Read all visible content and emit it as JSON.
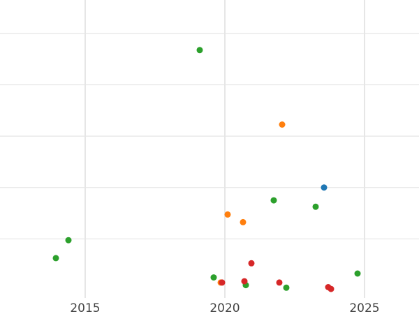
{
  "chart_data": {
    "type": "scatter",
    "title": "",
    "xlabel": "",
    "ylabel": "",
    "grid": true,
    "legend": "none",
    "xlim": [
      2011.95,
      2026.95
    ],
    "ylim": [
      -0.3,
      11.3
    ],
    "x_ticks": [
      2015,
      2020,
      2025
    ],
    "x_tick_labels": [
      "2015",
      "2020",
      "2025"
    ],
    "y_ticks": [
      2,
      4,
      6,
      8,
      10
    ],
    "y_tick_labels": [],
    "colors": {
      "blue": "#1f77b4",
      "orange": "#ff7f0e",
      "green": "#2ca02c",
      "red": "#d62728"
    },
    "series": [
      {
        "color": "#1f77b4",
        "points": [
          [
            2023.55,
            4.0
          ]
        ]
      },
      {
        "color": "#ff7f0e",
        "points": [
          [
            2022.05,
            6.45
          ],
          [
            2020.1,
            2.95
          ],
          [
            2020.65,
            2.65
          ],
          [
            2019.85,
            0.3
          ]
        ]
      },
      {
        "color": "#2ca02c",
        "points": [
          [
            2019.1,
            9.35
          ],
          [
            2021.75,
            3.5
          ],
          [
            2023.25,
            3.25
          ],
          [
            2014.4,
            1.95
          ],
          [
            2013.95,
            1.25
          ],
          [
            2019.6,
            0.5
          ],
          [
            2020.75,
            0.2
          ],
          [
            2022.2,
            0.1
          ],
          [
            2024.75,
            0.65
          ]
        ]
      },
      {
        "color": "#d62728",
        "points": [
          [
            2020.95,
            1.05
          ],
          [
            2019.9,
            0.3
          ],
          [
            2020.7,
            0.35
          ],
          [
            2021.95,
            0.3
          ],
          [
            2023.7,
            0.12
          ],
          [
            2023.8,
            0.05
          ]
        ]
      }
    ]
  }
}
